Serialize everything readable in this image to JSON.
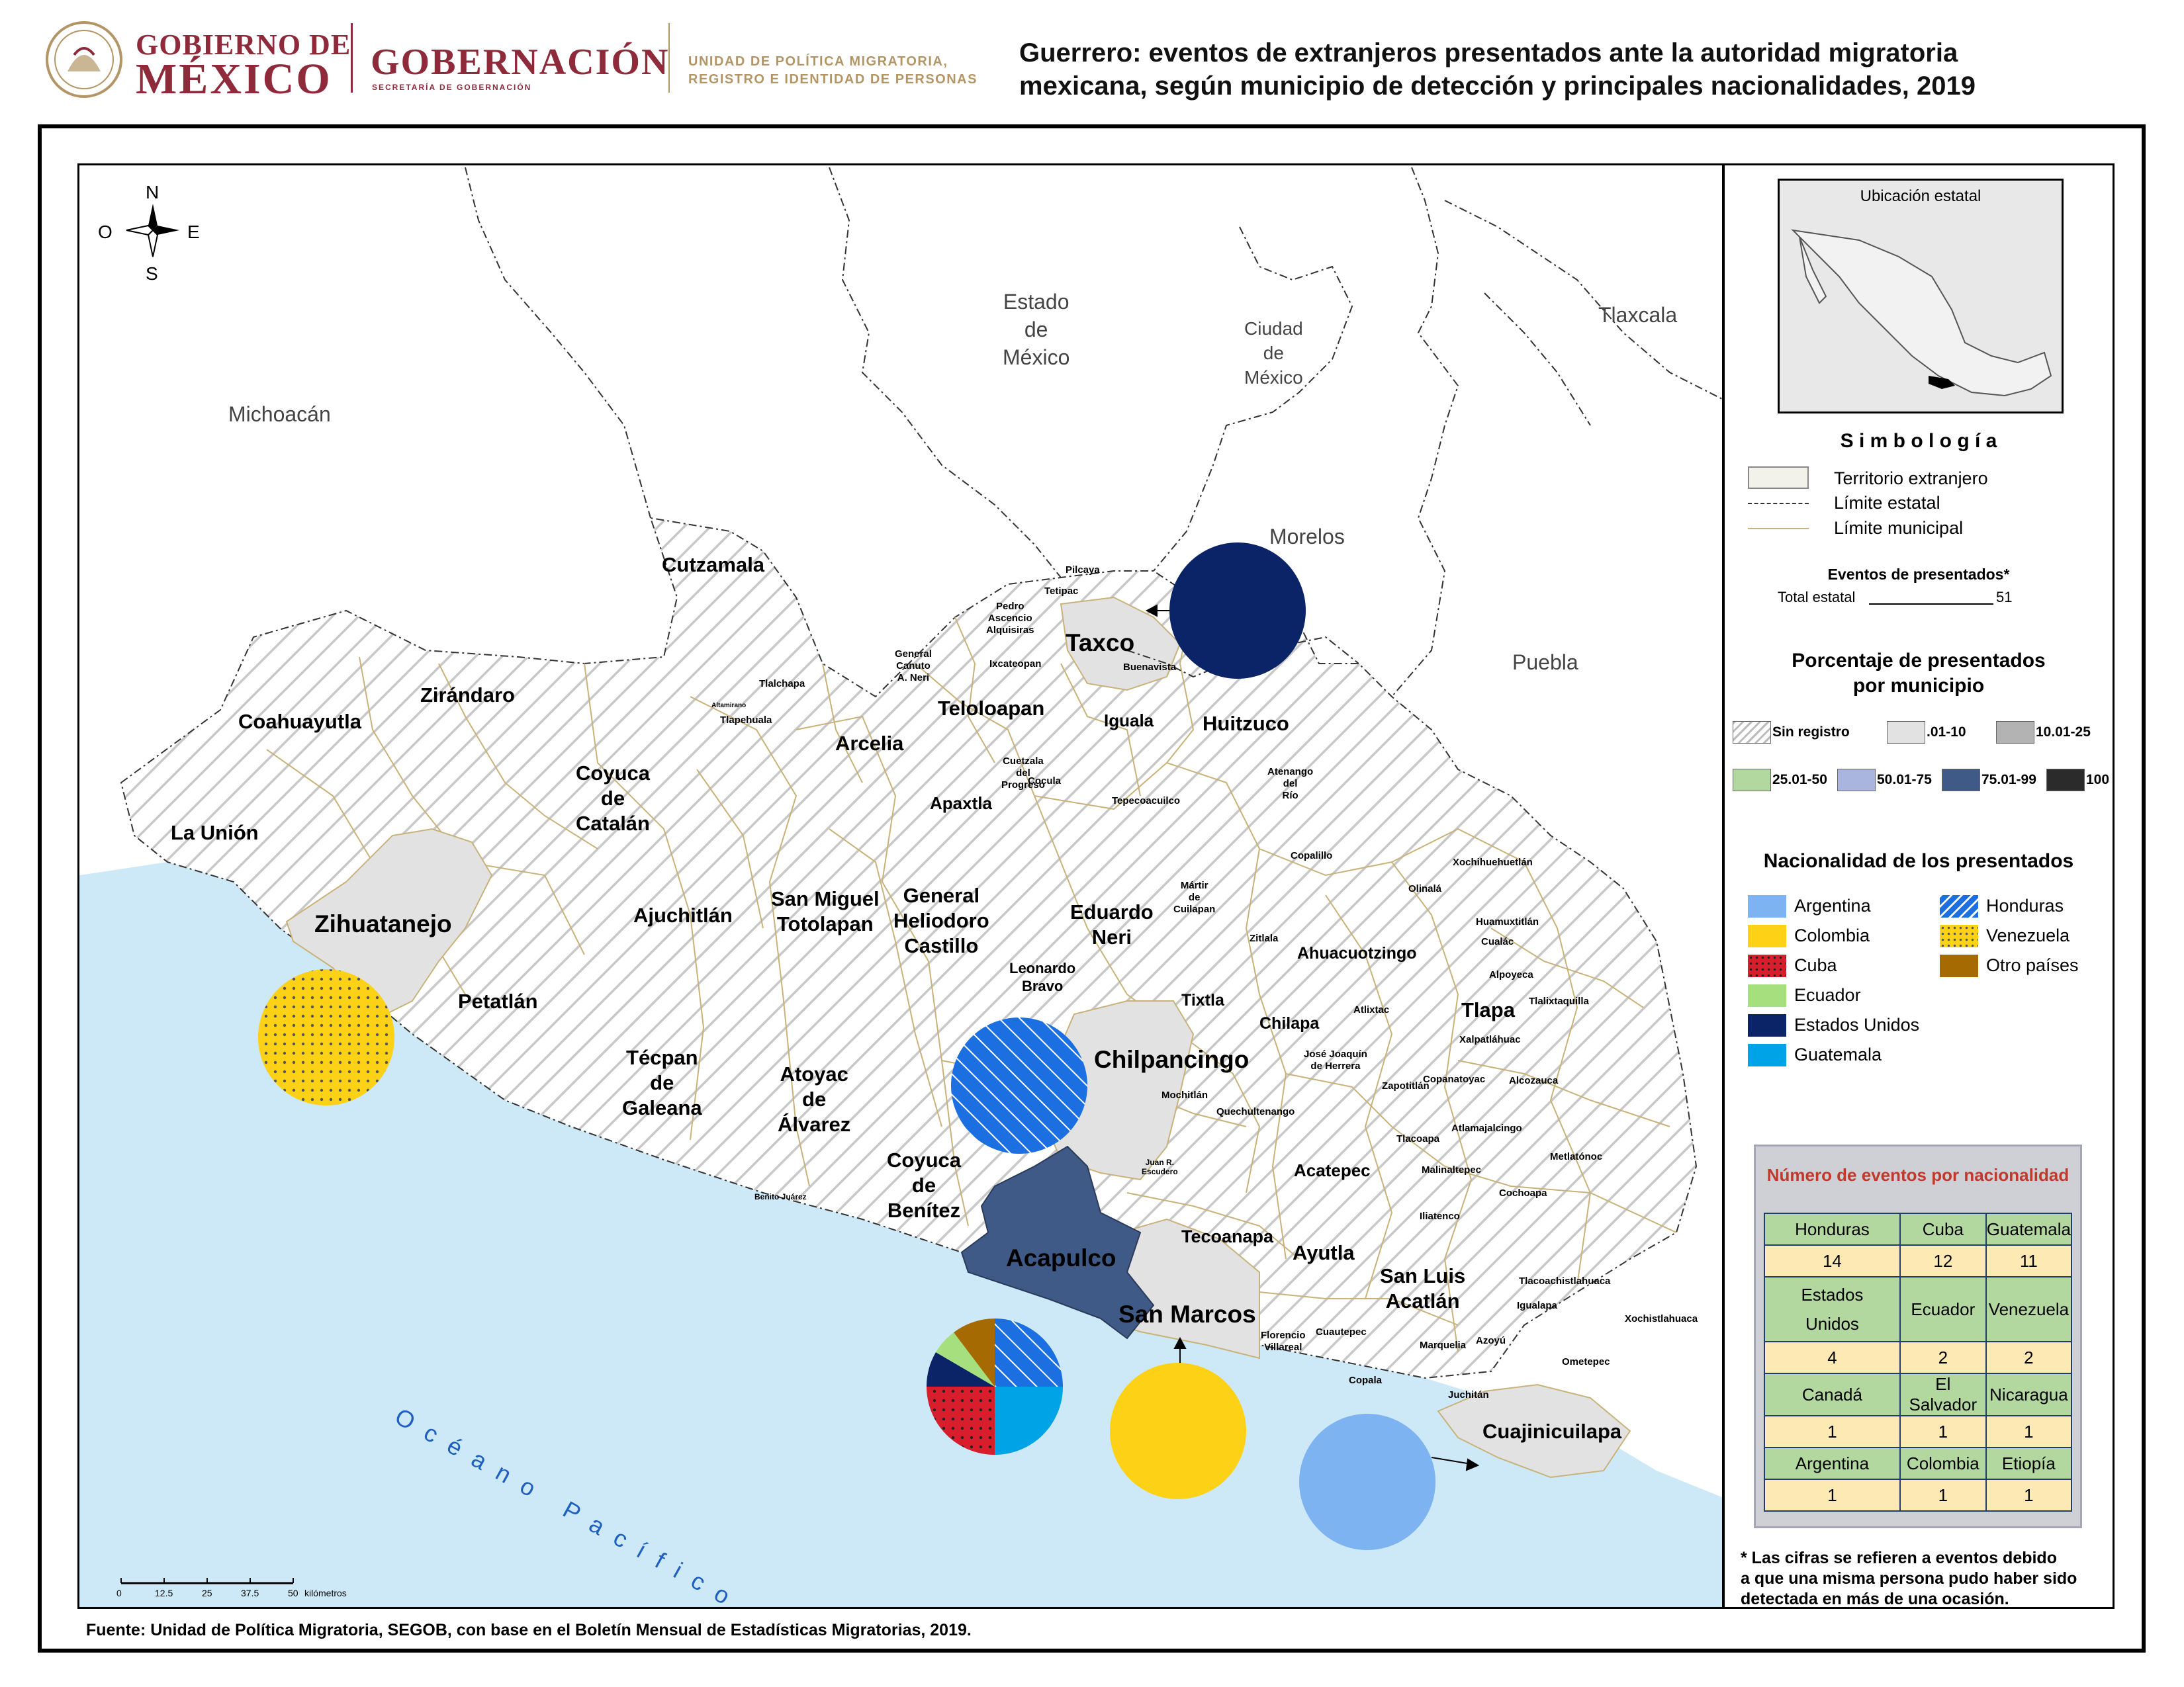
{
  "header": {
    "gov_line1": "GOBIERNO DE",
    "gov_line2": "MÉXICO",
    "secretaria": "GOBERNACIÓN",
    "secretaria_sub": "SECRETARÍA DE GOBERNACIÓN",
    "unidad_line1": "UNIDAD DE POLÍTICA MIGRATORIA,",
    "unidad_line2": "REGISTRO E IDENTIDAD DE PERSONAS",
    "title_line1": "Guerrero: eventos de extranjeros presentados ante la autoridad migratoria",
    "title_line2": "mexicana, según municipio de detección y principales nacionalidades, 2019"
  },
  "compass": {
    "n": "N",
    "s": "S",
    "e": "E",
    "o": "O"
  },
  "states": {
    "michoacan": "Michoacán",
    "edomex": [
      "Estado",
      "de",
      "México"
    ],
    "cdmx": [
      "Ciudad",
      "de",
      "México"
    ],
    "tlaxcala": "Tlaxcala",
    "morelos": "Morelos",
    "puebla": "Puebla",
    "ocean": "O c é a n o   P a c í f i c o"
  },
  "municipalities_big": {
    "cutzamala": "Cutzamala",
    "ziran": "Zirándaro",
    "coahuay": "Coahuayutla",
    "launion": "La Unión",
    "coyuca_cat": [
      "Coyuca",
      "de",
      "Catalán"
    ],
    "zihua": "Zihuatanejo",
    "petatlan": "Petatlán",
    "ajuchitlan": "Ajuchitlán",
    "sanmiguel": [
      "San Miguel",
      "Totolapan"
    ],
    "tecpan": [
      "Técpan",
      "de",
      "Galeana"
    ],
    "atoyac": [
      "Atoyac",
      "de",
      "Álvarez"
    ],
    "arcelia": "Arcelia",
    "teloloapan": "Teloloapan",
    "taxco": "Taxco",
    "iguala": "Iguala",
    "huitzuco": "Huitzuco",
    "apaxtla": "Apaxtla",
    "general": [
      "General",
      "Heliodoro",
      "Castillo"
    ],
    "eduardo": [
      "Eduardo",
      "Neri"
    ],
    "leonardo": [
      "Leonardo",
      "Bravo"
    ],
    "chilpancingo": "Chilpancingo",
    "tixtla": "Tixtla",
    "chilapa": "Chilapa",
    "coyuca_ben": [
      "Coyuca",
      "de",
      "Benítez"
    ],
    "acapulco": "Acapulco",
    "sanmarcos": "San Marcos",
    "tecoanapa": "Tecoanapa",
    "ayutla": "Ayutla",
    "sanluis": [
      "San Luis",
      "Acatlán"
    ],
    "cuaji": "Cuajinicuilapa",
    "ahuacuot": "Ahuacuotzingo",
    "tlapa": "Tlapa",
    "acatepec": "Acatepec"
  },
  "municipalities_small": {
    "pilcaya": "Pilcaya",
    "tetipac": "Tetipac",
    "pedro": [
      "Pedro",
      "Ascencio",
      "Alquisiras"
    ],
    "ixcateopan": "Ixcateopan",
    "gcanuto": [
      "General",
      "Canuto",
      "A. Neri"
    ],
    "tlalchapa": "Tlalchapa",
    "tlapehuala": "Tlapehuala",
    "altamirano": "Altamirano",
    "buenavista": "Buenavista",
    "cuetzala": [
      "Cuetzala",
      "del",
      "Progreso"
    ],
    "cocula": "Cocula",
    "tepecoa": "Tepecoacuilco",
    "atenango": [
      "Atenango",
      "del",
      "Río"
    ],
    "copalillo": "Copalillo",
    "martir": [
      "Mártir",
      "de",
      "Cuilapan"
    ],
    "zitlala": "Zitlala",
    "xochihue": "Xochihuehuetlán",
    "olinala": "Olinalá",
    "huamux": "Huamuxtitlán",
    "cualac": "Cualác",
    "alpoyeca": "Alpoyeca",
    "tlalixta": "Tlalixtaquilla",
    "xalpatla": "Xalpatláhuac",
    "atlixtac": "Atlixtac",
    "josejoaquin": [
      "José Joaquín",
      "de Herrera"
    ],
    "zapotitlan": "Zapotitlán",
    "copanatoyac": "Copanatoyac",
    "alcozauca": "Alcozauca",
    "mochitlan": "Mochitlán",
    "quechul": "Quechultenango",
    "tlacoapa": "Tlacoapa",
    "atlamaja": "Atlamajalcingo",
    "malinal": "Malinaltepec",
    "metlatonoc": "Metlatónoc",
    "cochoapa": "Cochoapa",
    "iliatenco": "Iliatenco",
    "juanr": [
      "Juan R.",
      "Escudero"
    ],
    "benito": "Benito Juárez",
    "tlacoachis": "Tlacoachistlahuaca",
    "xochis": "Xochistlahuaca",
    "igualapa": "Igualapa",
    "azoyu": "Azoyú",
    "marquelia": "Marquelia",
    "ometepec": "Ometepec",
    "cuautepec": "Cuautepec",
    "florencio": [
      "Florencio",
      "Villareal"
    ],
    "copala": "Copala",
    "juchitan": "Juchitán"
  },
  "legend": {
    "inset_title": "Ubicación estatal",
    "simbologia": "S i m b o l o g í a",
    "territorio": "Territorio extranjero",
    "limite_estatal": "Límite estatal",
    "limite_municipal": "Límite municipal",
    "eventos_title": "Eventos de presentados*",
    "total_label": "Total estatal",
    "total_value": "51",
    "porcentaje_title_1": "Porcentaje de presentados",
    "porcentaje_title_2": "por municipio",
    "classes": [
      {
        "label": "Sin registro",
        "color": "#ffffff"
      },
      {
        "label": ".01-10",
        "color": "#e2e2e2"
      },
      {
        "label": "10.01-25",
        "color": "#b3b3b3"
      },
      {
        "label": "25.01-50",
        "color": "#b2d8a0"
      },
      {
        "label": "50.01-75",
        "color": "#a9b5de"
      },
      {
        "label": "75.01-99",
        "color": "#3f5a86"
      },
      {
        "label": "100",
        "color": "#2b2b2b"
      }
    ],
    "nacionalidad_title": "Nacionalidad de los presentados",
    "nationalities": [
      {
        "label": "Argentina",
        "color": "#7db3f0"
      },
      {
        "label": "Colombia",
        "color": "#fcd116"
      },
      {
        "label": "Cuba",
        "color": "#d81e2c"
      },
      {
        "label": "Ecuador",
        "color": "#a6e07e"
      },
      {
        "label": "Estados Unidos",
        "color": "#0a2467"
      },
      {
        "label": "Guatemala",
        "color": "#00a3e6"
      },
      {
        "label": "Honduras",
        "color": "#1b6fe0"
      },
      {
        "label": "Venezuela",
        "color": "#fcd116"
      },
      {
        "label": "Otro países",
        "color": "#a56b02"
      }
    ]
  },
  "events_table": {
    "title": "Número de eventos por nacionalidad",
    "rows": [
      {
        "names": [
          "Honduras",
          "Cuba",
          "Guatemala"
        ],
        "values": [
          "14",
          "12",
          "11"
        ]
      },
      {
        "names": [
          "Estados Unidos",
          "Ecuador",
          "Venezuela"
        ],
        "values": [
          "4",
          "2",
          "2"
        ]
      },
      {
        "names": [
          "Canadá",
          "El Salvador",
          "Nicaragua"
        ],
        "values": [
          "1",
          "1",
          "1"
        ]
      },
      {
        "names": [
          "Argentina",
          "Colombia",
          "Etiopía"
        ],
        "values": [
          "1",
          "1",
          "1"
        ]
      }
    ]
  },
  "scale": {
    "ticks": [
      "0",
      "12.5",
      "25",
      "37.5",
      "50"
    ],
    "unit": "kilómetros"
  },
  "footnote": [
    "* Las cifras se refieren a eventos debido",
    "a que una misma persona pudo haber sido",
    "detectada en más de una ocasión."
  ],
  "source": "Fuente: Unidad de Política Migratoria, SEGOB, con base en el Boletín Mensual de Estadísticas Migratorias, 2019."
}
